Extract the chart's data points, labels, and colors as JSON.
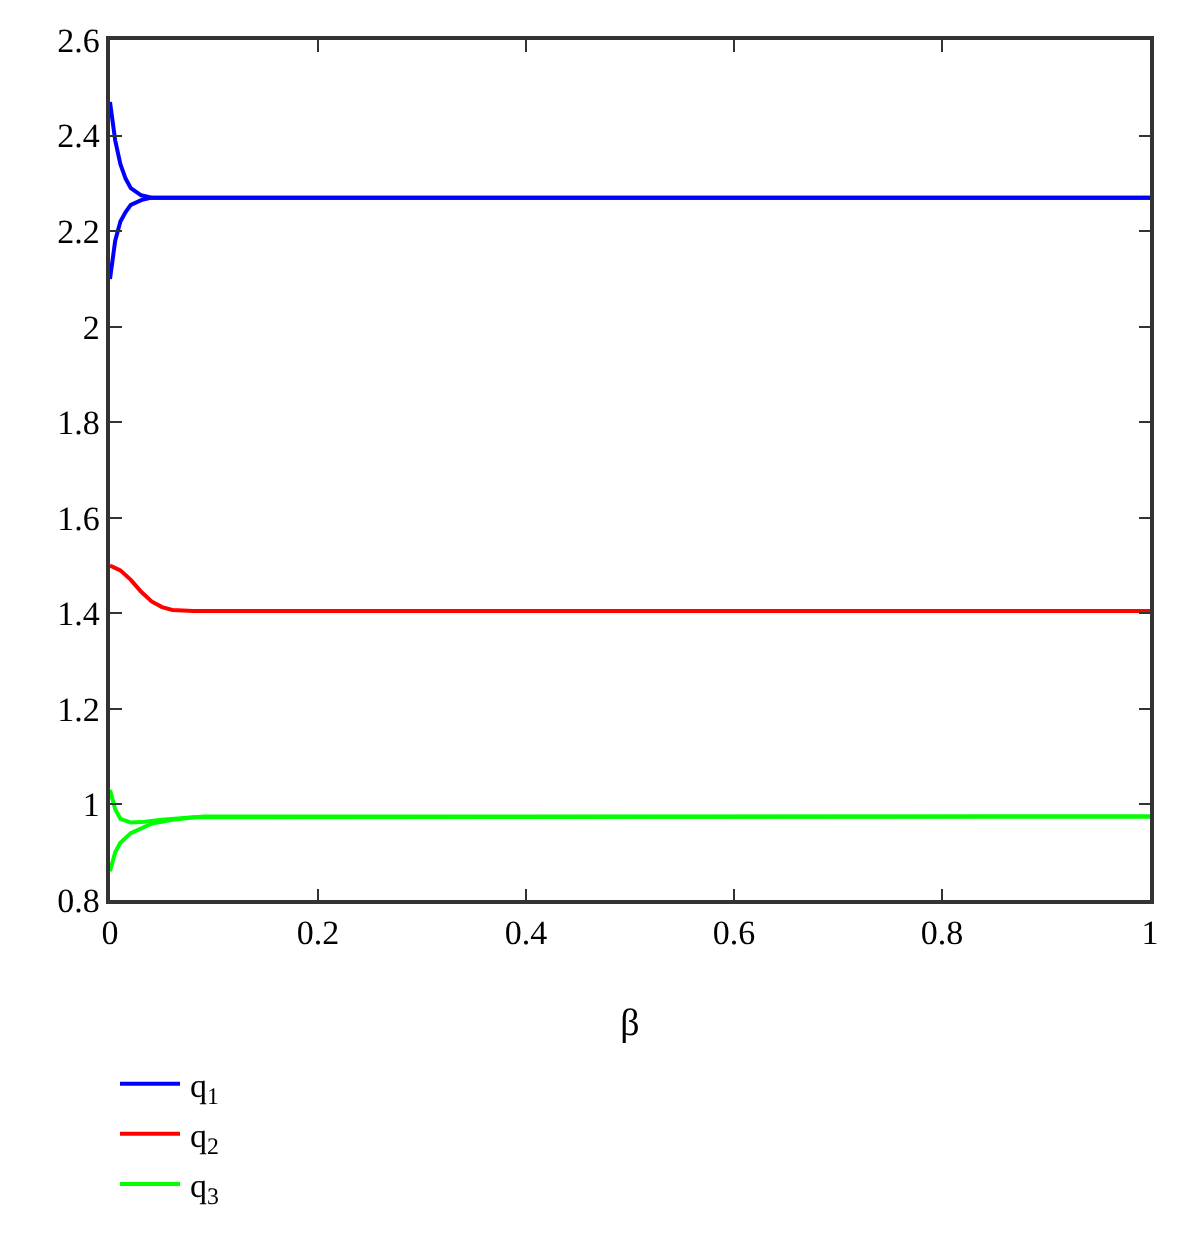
{
  "chart_data": {
    "type": "line",
    "xlabel": "β",
    "xlim": [
      0,
      1
    ],
    "xticks": [
      0,
      0.2,
      0.4,
      0.6,
      0.8,
      1
    ],
    "ylim": [
      0.8,
      2.6
    ],
    "yticks": [
      0.8,
      1,
      1.2,
      1.4,
      1.6,
      1.8,
      2,
      2.2,
      2.4,
      2.6
    ],
    "grid": false,
    "legend": "bottom left",
    "line_style": "solid",
    "series": [
      {
        "name": "q$_{1}$",
        "color": "#0000ff",
        "x": [
          0,
          0.005,
          0.01,
          0.015,
          0.02,
          0.03,
          0.04,
          0.06,
          1,
          null,
          0,
          0.005,
          0.01,
          0.015,
          0.02,
          0.03,
          0.04,
          0.06,
          1
        ],
        "values": [
          2.47,
          2.39,
          2.34,
          2.31,
          2.29,
          2.275,
          2.27,
          2.27,
          2.27,
          null,
          2.1,
          2.18,
          2.22,
          2.24,
          2.255,
          2.265,
          2.27,
          2.27,
          2.27
        ]
      },
      {
        "name": "q$_{2}$",
        "color": "#ff0000",
        "x": [
          0,
          0.01,
          0.02,
          0.03,
          0.04,
          0.05,
          0.06,
          0.08,
          1
        ],
        "values": [
          1.5,
          1.49,
          1.47,
          1.445,
          1.425,
          1.413,
          1.407,
          1.405,
          1.405
        ]
      },
      {
        "name": "q$_{3}$",
        "color": "#00ff00",
        "x": [
          0,
          0.005,
          0.01,
          0.02,
          0.03,
          0.05,
          0.08,
          1,
          null,
          0,
          0.005,
          0.01,
          0.02,
          0.04,
          0.06,
          0.09,
          1
        ],
        "values": [
          1.03,
          0.99,
          0.97,
          0.962,
          0.963,
          0.968,
          0.973,
          0.975,
          null,
          0.86,
          0.9,
          0.92,
          0.94,
          0.96,
          0.968,
          0.975,
          0.975
        ]
      }
    ]
  }
}
